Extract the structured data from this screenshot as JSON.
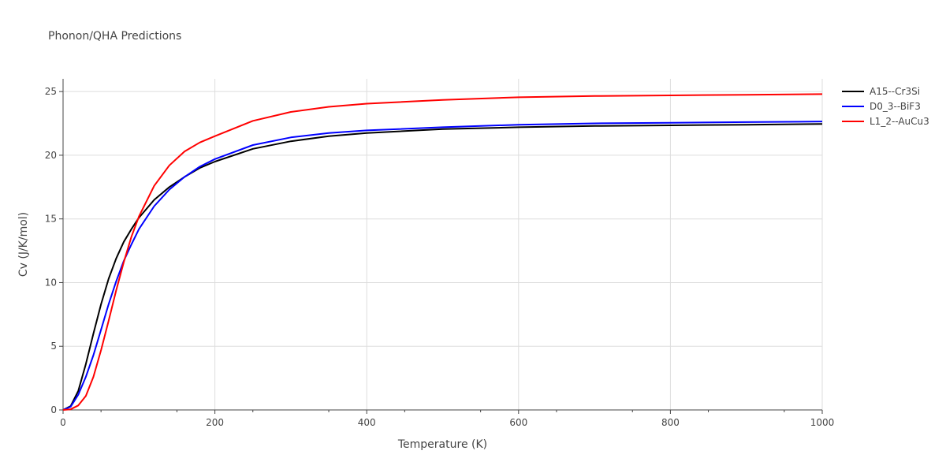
{
  "chart_data": {
    "type": "line",
    "title": "Phonon/QHA Predictions",
    "xlabel": "Temperature (K)",
    "ylabel": "Cv (J/K/mol)",
    "xlim": [
      0,
      1000
    ],
    "ylim": [
      0,
      26
    ],
    "xticks": [
      0,
      200,
      400,
      600,
      800,
      1000
    ],
    "yticks": [
      0,
      5,
      10,
      15,
      20,
      25
    ],
    "grid": true,
    "legend_position": "right",
    "series": [
      {
        "name": "A15--Cr3Si",
        "color": "#000000",
        "x": [
          0,
          10,
          20,
          30,
          40,
          50,
          60,
          70,
          80,
          90,
          100,
          120,
          140,
          160,
          180,
          200,
          250,
          300,
          350,
          400,
          500,
          600,
          700,
          800,
          900,
          1000
        ],
        "y": [
          0,
          0.3,
          1.5,
          3.6,
          6.0,
          8.3,
          10.3,
          11.9,
          13.2,
          14.2,
          15.1,
          16.5,
          17.5,
          18.3,
          19.0,
          19.5,
          20.5,
          21.1,
          21.5,
          21.75,
          22.05,
          22.2,
          22.3,
          22.35,
          22.4,
          22.45
        ]
      },
      {
        "name": "D0_3--BiF3",
        "color": "#0000ff",
        "x": [
          0,
          10,
          20,
          30,
          40,
          50,
          60,
          70,
          80,
          90,
          100,
          120,
          140,
          160,
          180,
          200,
          250,
          300,
          350,
          400,
          500,
          600,
          700,
          800,
          900,
          1000
        ],
        "y": [
          0,
          0.25,
          1.2,
          2.6,
          4.3,
          6.3,
          8.3,
          10.1,
          11.7,
          13.0,
          14.2,
          16.0,
          17.3,
          18.3,
          19.1,
          19.7,
          20.8,
          21.4,
          21.75,
          21.95,
          22.2,
          22.4,
          22.5,
          22.55,
          22.6,
          22.65
        ]
      },
      {
        "name": "L1_2--AuCu3",
        "color": "#ff0000",
        "x": [
          0,
          10,
          20,
          30,
          40,
          50,
          60,
          70,
          80,
          90,
          100,
          120,
          140,
          160,
          180,
          200,
          250,
          300,
          350,
          400,
          500,
          600,
          700,
          800,
          900,
          1000
        ],
        "y": [
          0,
          0.05,
          0.35,
          1.1,
          2.6,
          4.7,
          7.0,
          9.4,
          11.6,
          13.6,
          15.2,
          17.6,
          19.2,
          20.3,
          21.0,
          21.5,
          22.7,
          23.4,
          23.8,
          24.05,
          24.35,
          24.55,
          24.65,
          24.7,
          24.75,
          24.8
        ]
      }
    ]
  }
}
